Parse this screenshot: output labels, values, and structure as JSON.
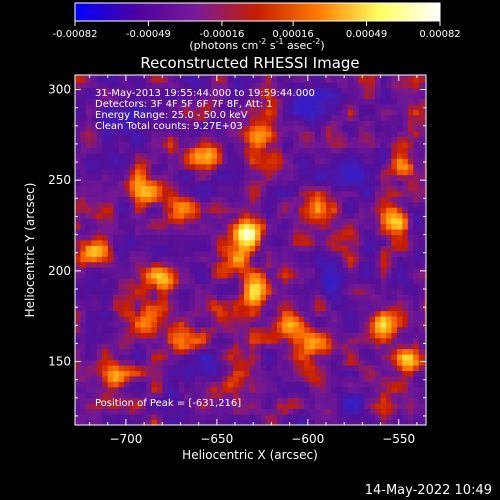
{
  "chart_data": {
    "type": "heatmap",
    "title": "Reconstructed RHESSI Image",
    "colorbar": {
      "ticks": [
        "-0.00082",
        "-0.00049",
        "-0.00016",
        "0.00016",
        "0.00049",
        "0.00082"
      ],
      "tick_values": [
        -0.00082,
        -0.00049,
        -0.00016,
        0.00016,
        0.00049,
        0.00082
      ],
      "range": [
        -0.00082,
        0.00082
      ],
      "label_prefix": "(photons cm",
      "label_exp1": "-2",
      "label_mid": " s",
      "label_exp2": "-1",
      "label_mid2": " asec",
      "label_exp3": "-2",
      "label_suffix": ")",
      "colors": [
        "#0000ff",
        "#4b00a0",
        "#7a1a9a",
        "#c81e00",
        "#ff7a00",
        "#ffff60",
        "#ffffff"
      ]
    },
    "annotations": [
      "31-May-2013 19:55:44.000 to 19:59:44.000",
      "Detectors: 3F 4F 5F 6F 7F 8F, Att: 1",
      "Energy Range: 25.0 - 50.0 keV",
      "Clean    Total counts: 9.27E+03"
    ],
    "peak_label": "Position of Peak = [-631,216]",
    "peak": {
      "x": -631,
      "y": 216
    },
    "xlabel": "Heliocentric X (arcsec)",
    "ylabel": "Heliocentric Y (arcsec)",
    "xlim": [
      -728,
      -535
    ],
    "ylim": [
      115,
      308
    ],
    "xticks": [
      -700,
      -650,
      -600,
      -550
    ],
    "xtick_labels": [
      "−700",
      "−650",
      "−600",
      "−550"
    ],
    "yticks": [
      150,
      200,
      250,
      300
    ],
    "ytick_labels": [
      "150",
      "200",
      "250",
      "300"
    ],
    "grid": false,
    "hotspots": [
      {
        "x": -633,
        "y": 220,
        "sigma": 5,
        "amp": 1.0
      },
      {
        "x": -638,
        "y": 206,
        "sigma": 5,
        "amp": 0.55
      },
      {
        "x": -627,
        "y": 190,
        "sigma": 6,
        "amp": 0.5
      },
      {
        "x": -680,
        "y": 195,
        "sigma": 6,
        "amp": 0.45
      },
      {
        "x": -688,
        "y": 172,
        "sigma": 6,
        "amp": 0.4
      },
      {
        "x": -668,
        "y": 162,
        "sigma": 6,
        "amp": 0.4
      },
      {
        "x": -610,
        "y": 170,
        "sigma": 5,
        "amp": 0.45
      },
      {
        "x": -595,
        "y": 160,
        "sigma": 6,
        "amp": 0.4
      },
      {
        "x": -545,
        "y": 150,
        "sigma": 5,
        "amp": 0.6
      },
      {
        "x": -560,
        "y": 170,
        "sigma": 5,
        "amp": 0.5
      },
      {
        "x": -552,
        "y": 228,
        "sigma": 5,
        "amp": 0.5
      },
      {
        "x": -548,
        "y": 258,
        "sigma": 5,
        "amp": 0.45
      },
      {
        "x": -718,
        "y": 212,
        "sigma": 5,
        "amp": 0.5
      },
      {
        "x": -655,
        "y": 265,
        "sigma": 6,
        "amp": 0.45
      },
      {
        "x": -625,
        "y": 275,
        "sigma": 6,
        "amp": 0.4
      },
      {
        "x": -690,
        "y": 245,
        "sigma": 6,
        "amp": 0.35
      },
      {
        "x": -670,
        "y": 235,
        "sigma": 5,
        "amp": 0.35
      },
      {
        "x": -595,
        "y": 235,
        "sigma": 5,
        "amp": 0.3
      },
      {
        "x": -705,
        "y": 140,
        "sigma": 5,
        "amp": 0.35
      },
      {
        "x": -640,
        "y": 140,
        "sigma": 5,
        "amp": 0.3
      }
    ],
    "coldspots": [
      {
        "x": -575,
        "y": 255,
        "sigma": 8,
        "amp": -0.35
      },
      {
        "x": -600,
        "y": 290,
        "sigma": 7,
        "amp": -0.3
      },
      {
        "x": -590,
        "y": 195,
        "sigma": 7,
        "amp": -0.3
      },
      {
        "x": -700,
        "y": 280,
        "sigma": 8,
        "amp": -0.3
      },
      {
        "x": -655,
        "y": 150,
        "sigma": 6,
        "amp": -0.25
      },
      {
        "x": -575,
        "y": 130,
        "sigma": 6,
        "amp": -0.25
      }
    ]
  },
  "footer": {
    "timestamp": "14-May-2022 10:49"
  }
}
